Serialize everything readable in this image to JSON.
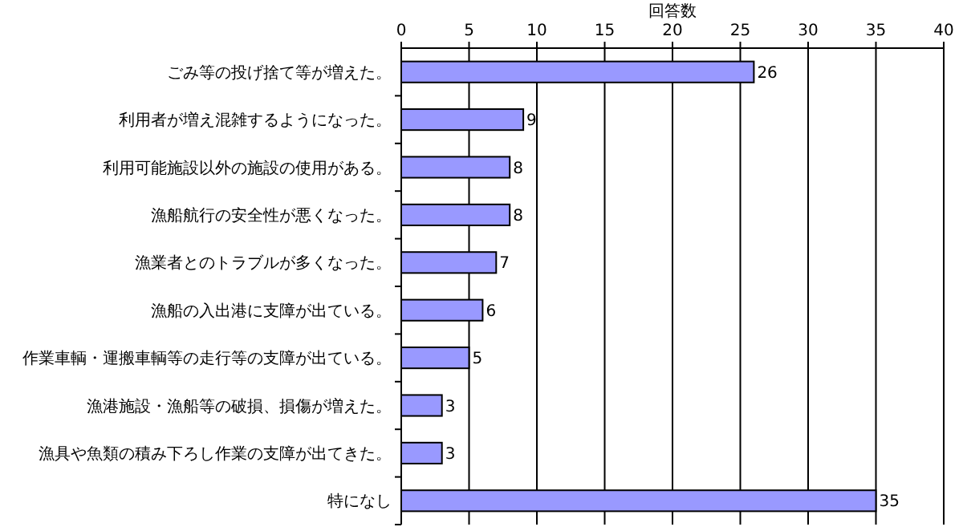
{
  "chart_data": {
    "type": "bar",
    "orientation": "horizontal",
    "xlabel": "回答数",
    "categories": [
      "ごみ等の投げ捨て等が増えた。",
      "利用者が増え混雑するようになった。",
      "利用可能施設以外の施設の使用がある。",
      "漁船航行の安全性が悪くなった。",
      "漁業者とのトラブルが多くなった。",
      "漁船の入出港に支障が出ている。",
      "作業車輌・運搬車輌等の走行等の支障が出ている。",
      "漁港施設・漁船等の破損、損傷が増えた。",
      "漁具や魚類の積み下ろし作業の支障が出てきた。",
      "特になし"
    ],
    "values": [
      26,
      9,
      8,
      8,
      7,
      6,
      5,
      3,
      3,
      35
    ],
    "color": "#9999ff",
    "xlim": [
      0,
      40
    ],
    "xticks": [
      0,
      5,
      10,
      15,
      20,
      25,
      30,
      35,
      40
    ],
    "grid": "x",
    "data_labels": true
  }
}
